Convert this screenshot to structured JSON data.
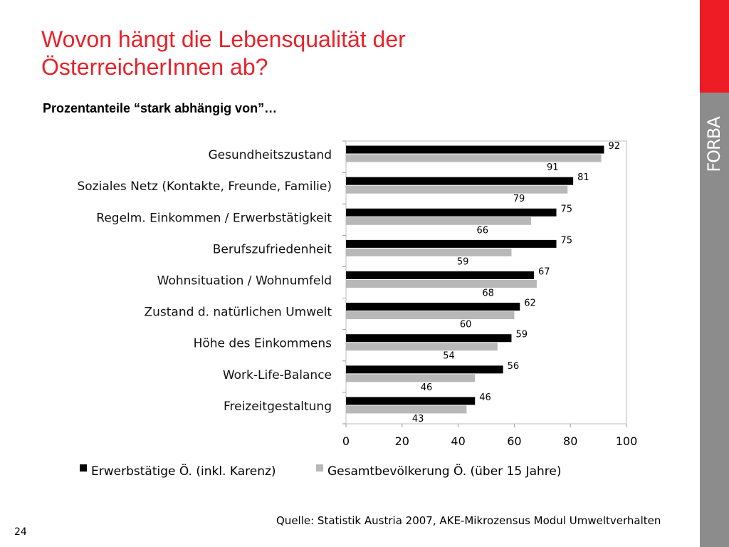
{
  "slide": {
    "title_line1": "Wovon hängt die Lebensqualität der",
    "title_line2": "ÖsterreicherInnen ab?",
    "subtitle": "Prozentanteile “stark abhängig von”…",
    "source": "Quelle: Statistik Austria 2007, AKE-Mikrozensus Modul Umweltverhalten",
    "page_number": "24",
    "logo_text": "FORBA"
  },
  "colors": {
    "title": "#e8222b",
    "sidebar_accent": "#ee1c25",
    "sidebar": "#8c8c8c",
    "series_employed": "#000000",
    "series_population": "#b8b8b8"
  },
  "chart_data": {
    "type": "bar",
    "orientation": "horizontal",
    "categories": [
      "Gesundheitszustand",
      "Soziales Netz (Kontakte, Freunde, Familie)",
      "Regelm. Einkommen / Erwerbstätigkeit",
      "Berufszufriedenheit",
      "Wohnsituation / Wohnumfeld",
      "Zustand d. natürlichen Umwelt",
      "Höhe des Einkommens",
      "Work-Life-Balance",
      "Freizeitgestaltung"
    ],
    "series": [
      {
        "name": "Erwerbstätige Ö. (inkl. Karenz)",
        "values": [
          92,
          81,
          75,
          75,
          67,
          62,
          59,
          56,
          46
        ]
      },
      {
        "name": "Gesamtbevölkerung Ö. (über 15 Jahre)",
        "values": [
          91,
          79,
          66,
          59,
          68,
          60,
          54,
          46,
          43
        ]
      }
    ],
    "xlim": [
      0,
      100
    ],
    "xticks": [
      "0",
      "20",
      "40",
      "60",
      "80",
      "100"
    ],
    "legend_position": "bottom",
    "grid": false
  }
}
